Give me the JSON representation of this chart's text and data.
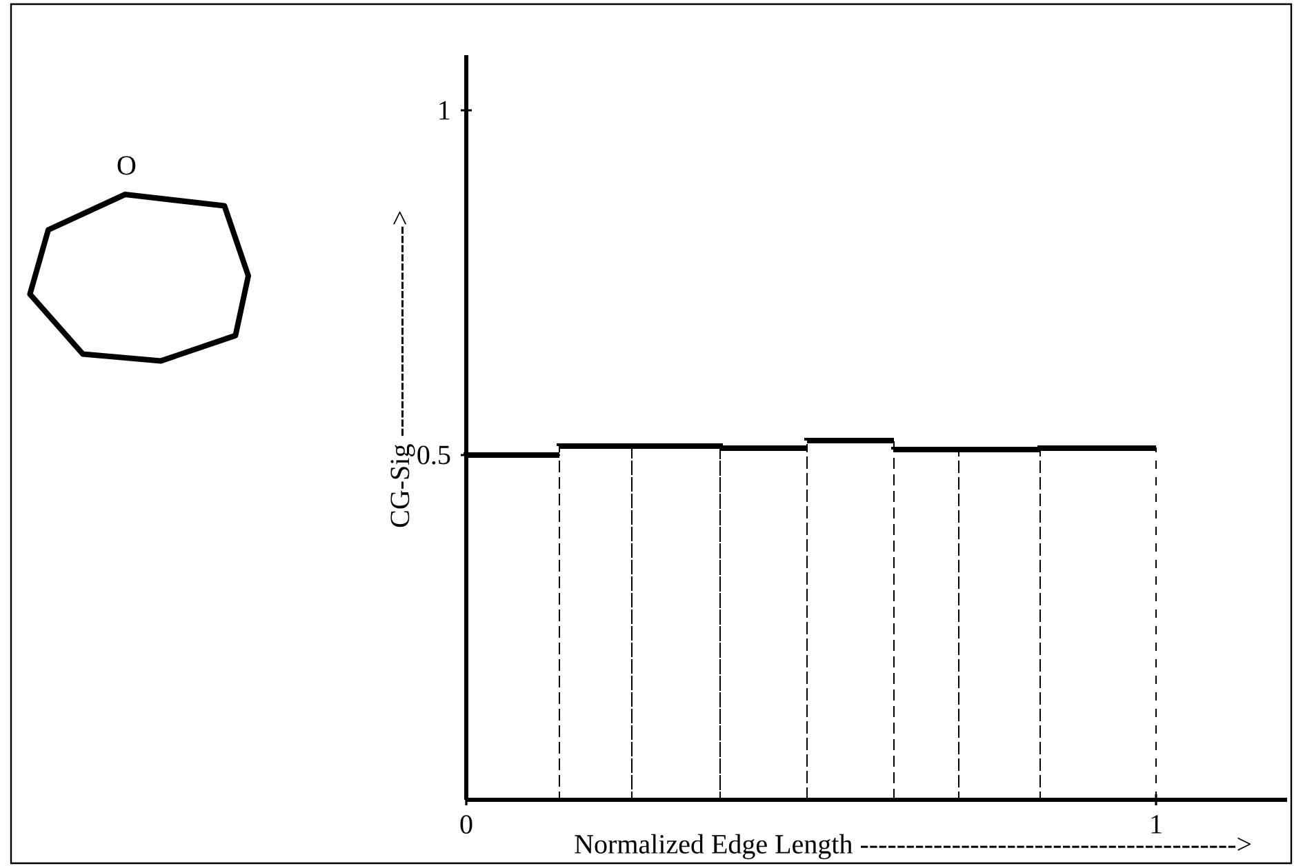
{
  "chart_data": {
    "type": "histogram",
    "color": "#000000",
    "bins": [
      0,
      0.135,
      0.24,
      0.368,
      0.494,
      0.62,
      0.714,
      0.832,
      1
    ],
    "values": [
      0.5,
      0.513,
      0.513,
      0.51,
      0.521,
      0.508,
      0.508,
      0.51
    ],
    "xlabel": "Normalized Edge Length ----------------------------------------->",
    "ylabel": "CG-Sig ----------------------->",
    "xlim": [
      0,
      1.19
    ],
    "ylim": [
      0,
      1.08
    ],
    "xticks": [
      0,
      1
    ],
    "yticks": [
      0.5,
      1
    ],
    "annotations": [
      "O"
    ]
  }
}
